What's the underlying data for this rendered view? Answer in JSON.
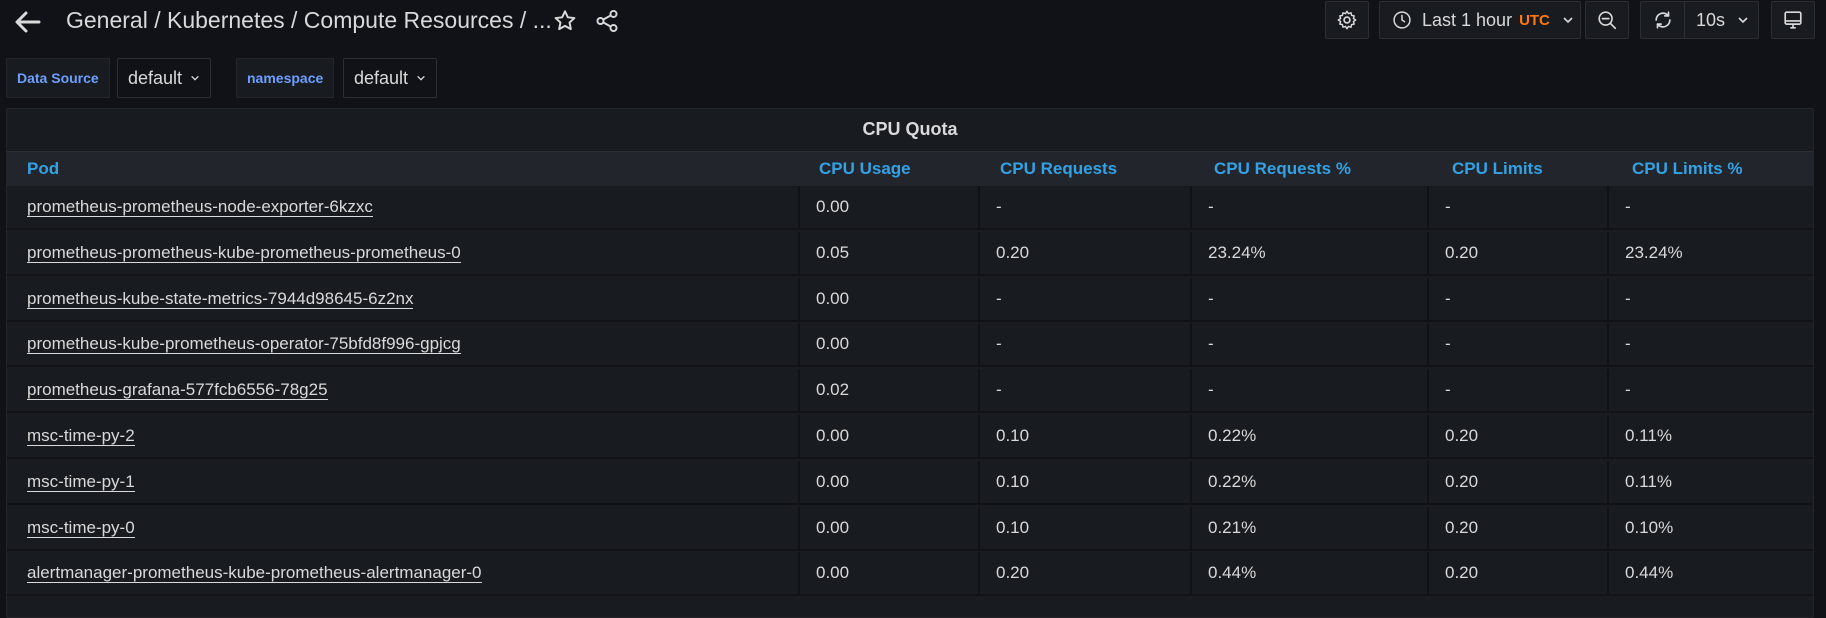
{
  "nav": {
    "breadcrumb": "General  / Kubernetes / Compute Resources / ...",
    "time_range": "Last 1 hour",
    "timezone": "UTC",
    "refresh_interval": "10s"
  },
  "variables": [
    {
      "label": "Data Source",
      "value": "default"
    },
    {
      "label": "namespace",
      "value": "default"
    }
  ],
  "panel": {
    "title": "CPU Quota",
    "columns": [
      "Pod",
      "CPU Usage",
      "CPU Requests",
      "CPU Requests %",
      "CPU Limits",
      "CPU Limits %"
    ],
    "rows": [
      [
        "prometheus-prometheus-node-exporter-6kzxc",
        "0.00",
        "-",
        "-",
        "-",
        "-"
      ],
      [
        "prometheus-prometheus-kube-prometheus-prometheus-0",
        "0.05",
        "0.20",
        "23.24%",
        "0.20",
        "23.24%"
      ],
      [
        "prometheus-kube-state-metrics-7944d98645-6z2nx",
        "0.00",
        "-",
        "-",
        "-",
        "-"
      ],
      [
        "prometheus-kube-prometheus-operator-75bfd8f996-gpjcg",
        "0.00",
        "-",
        "-",
        "-",
        "-"
      ],
      [
        "prometheus-grafana-577fcb6556-78g25",
        "0.02",
        "-",
        "-",
        "-",
        "-"
      ],
      [
        "msc-time-py-2",
        "0.00",
        "0.10",
        "0.22%",
        "0.20",
        "0.11%"
      ],
      [
        "msc-time-py-1",
        "0.00",
        "0.10",
        "0.22%",
        "0.20",
        "0.11%"
      ],
      [
        "msc-time-py-0",
        "0.00",
        "0.10",
        "0.21%",
        "0.20",
        "0.10%"
      ],
      [
        "alertmanager-prometheus-kube-prometheus-alertmanager-0",
        "0.00",
        "0.20",
        "0.44%",
        "0.20",
        "0.44%"
      ]
    ]
  },
  "icons": {
    "back": "arrow-left-icon",
    "star": "star-icon",
    "share": "share-icon",
    "settings": "gear-icon",
    "clock": "clock-icon",
    "zoom_out": "zoom-out-icon",
    "refresh": "refresh-icon",
    "tv": "monitor-icon"
  },
  "colors": {
    "background": "#111217",
    "panel": "#181b1f",
    "header_link": "#33a2e5",
    "variable_label": "#6e9fff",
    "timezone": "#ff780a"
  }
}
